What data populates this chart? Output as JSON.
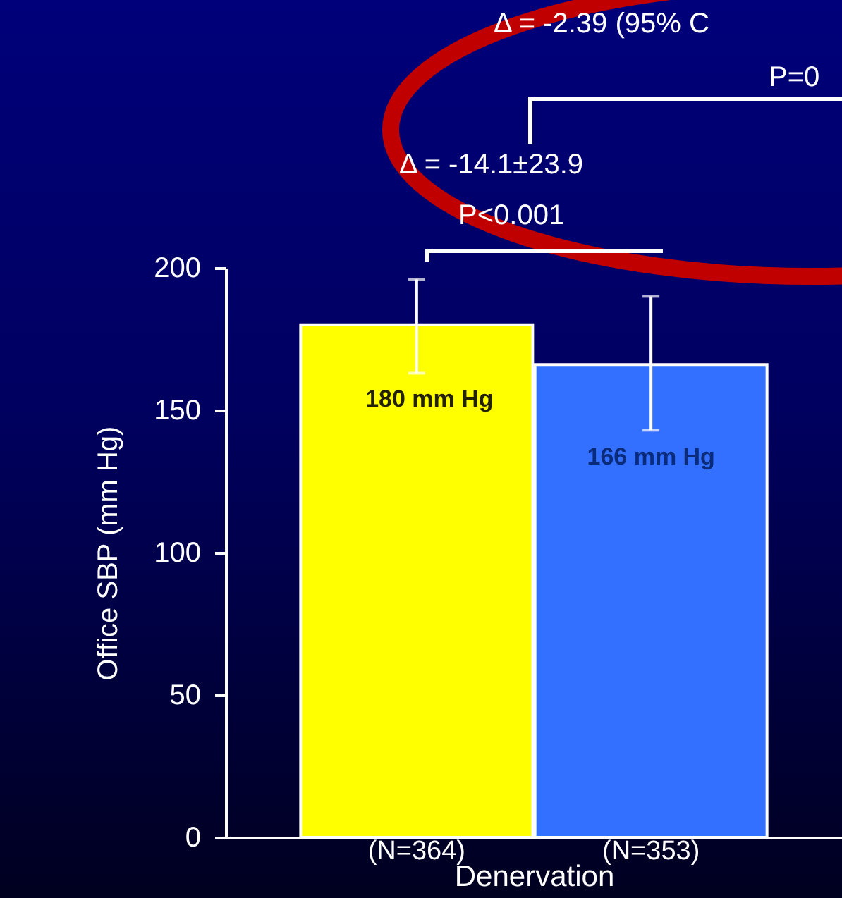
{
  "chart_data": {
    "type": "bar",
    "categories": [
      "(N=364)",
      "(N=353)"
    ],
    "values": [
      180,
      166
    ],
    "colors": [
      "#ffff00",
      "#3370ff"
    ],
    "errors": [
      [
        163,
        196
      ],
      [
        143,
        190
      ]
    ],
    "value_labels": [
      "180 mm Hg",
      "166 mm Hg"
    ],
    "xlabel": "Denervation",
    "ylabel": "Office SBP (mm Hg)",
    "ylim": [
      0,
      200
    ],
    "yticks": [
      0,
      50,
      100,
      150,
      200
    ],
    "annotations": [
      "Δ = -2.39 (95% C",
      "P=0",
      "Δ = -14.1±23.9",
      "P<0.001"
    ]
  }
}
